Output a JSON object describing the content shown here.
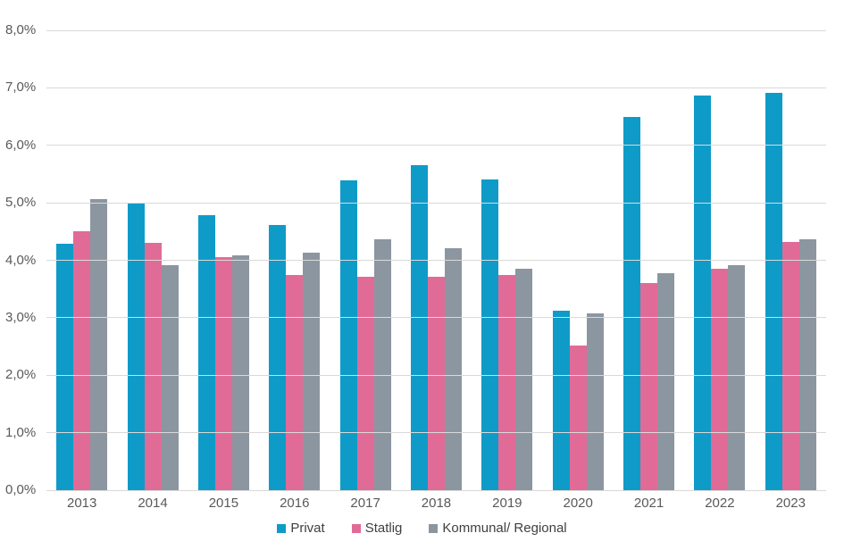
{
  "chart_data": {
    "type": "bar",
    "title": "",
    "categories": [
      "2013",
      "2014",
      "2015",
      "2016",
      "2017",
      "2018",
      "2019",
      "2020",
      "2021",
      "2022",
      "2023"
    ],
    "series": [
      {
        "name": "Privat",
        "color": "#0f9bc8",
        "values": [
          4.28,
          4.99,
          4.79,
          4.62,
          5.39,
          5.65,
          5.41,
          3.12,
          6.49,
          6.87,
          6.92
        ]
      },
      {
        "name": "Statlig",
        "color": "#e16b97",
        "values": [
          4.51,
          4.3,
          4.06,
          3.75,
          3.72,
          3.72,
          3.74,
          2.51,
          3.6,
          3.86,
          4.32
        ]
      },
      {
        "name": "Kommunal/ Regional",
        "color": "#8c96a0",
        "values": [
          5.07,
          3.92,
          4.08,
          4.13,
          4.37,
          4.21,
          3.86,
          3.08,
          3.78,
          3.92,
          4.37
        ]
      }
    ],
    "ylim": [
      0,
      8
    ],
    "ytick_step": 1,
    "ytick_labels": [
      "0,0%",
      "1,0%",
      "2,0%",
      "3,0%",
      "4,0%",
      "5,0%",
      "6,0%",
      "7,0%",
      "8,0%"
    ],
    "grid": true,
    "legend_position": "bottom"
  },
  "colors": {
    "background": "#ffffff",
    "gridline": "#d9d9d9",
    "axis_text": "#595959",
    "legend_text": "#404040"
  }
}
